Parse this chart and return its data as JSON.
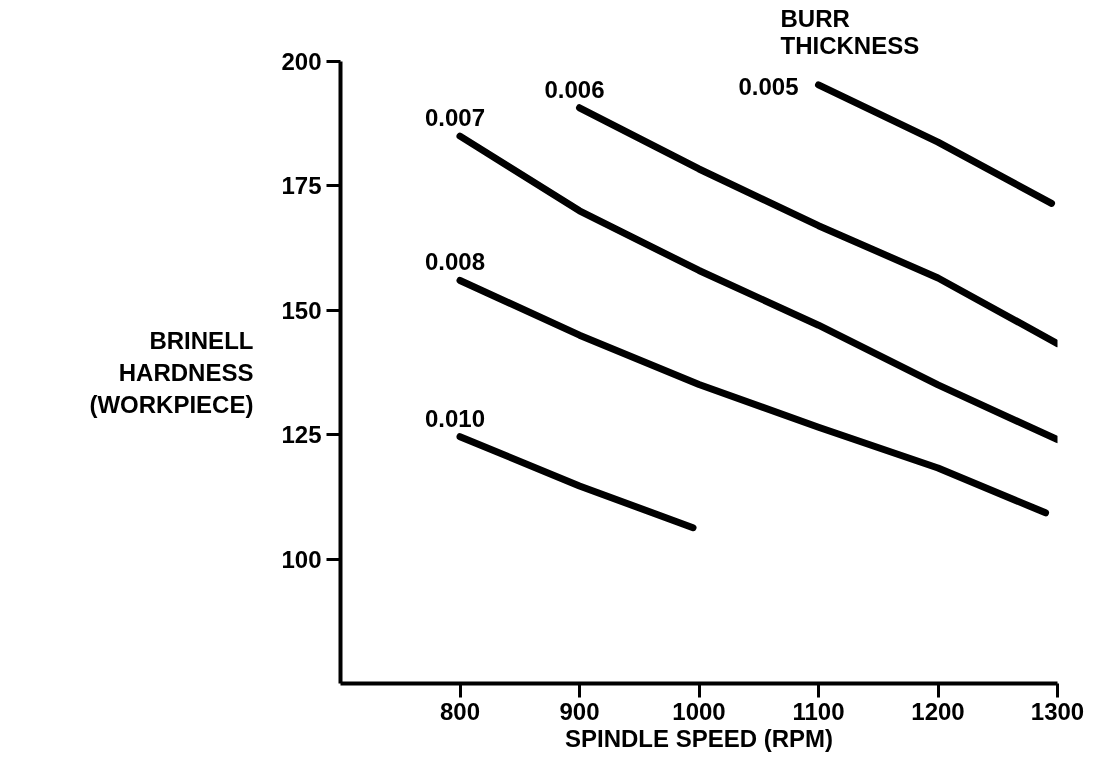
{
  "chart_data": {
    "type": "line",
    "xlabel": "SPINDLE SPEED (RPM)",
    "ylabel": "BRINELL\nHARDNESS\n(WORKPIECE)",
    "legend_title": "BURR\nTHICKNESS",
    "xlim": [
      700,
      1300
    ],
    "ylim": [
      75,
      200
    ],
    "xticks": [
      800,
      900,
      1000,
      1100,
      1200,
      1300
    ],
    "yticks": [
      100,
      125,
      150,
      175,
      200
    ],
    "grid": false,
    "marker": "none",
    "line_style": "solid",
    "series": [
      {
        "name": "0.005",
        "color": "#000000",
        "x": [
          1100,
          1200,
          1295
        ],
        "values": [
          195.3,
          183.8,
          171.5
        ]
      },
      {
        "name": "0.006",
        "color": "#000000",
        "x": [
          900,
          1000,
          1100,
          1200,
          1300
        ],
        "values": [
          190.7,
          178.4,
          167,
          156.5,
          143.3
        ]
      },
      {
        "name": "0.007",
        "color": "#000000",
        "x": [
          800,
          900,
          1000,
          1100,
          1200,
          1300
        ],
        "values": [
          185,
          170,
          158,
          147,
          135,
          124
        ]
      },
      {
        "name": "0.008",
        "color": "#000000",
        "x": [
          800,
          900,
          1000,
          1100,
          1200,
          1290
        ],
        "values": [
          156,
          145,
          135.1,
          126.5,
          118.3,
          109.3
        ]
      },
      {
        "name": "0.010",
        "color": "#000000",
        "x": [
          800,
          900,
          995
        ],
        "values": [
          124.6,
          114.7,
          106.3
        ]
      }
    ]
  }
}
